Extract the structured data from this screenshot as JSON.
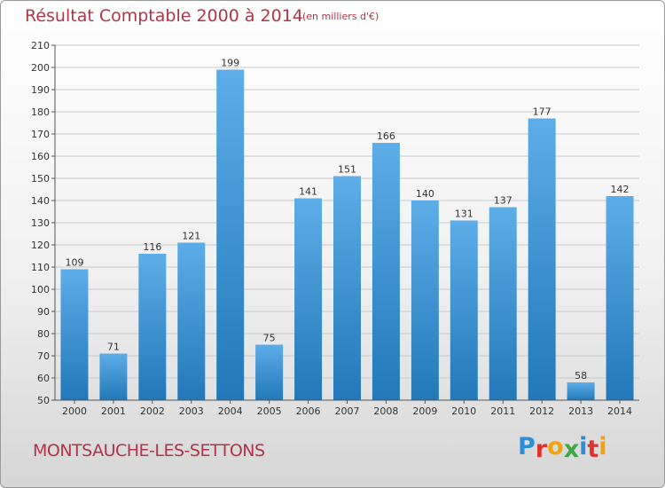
{
  "header": {
    "title": "Résultat Comptable 2000 à 2014",
    "subtitle": "(en milliers d'€)"
  },
  "footer": {
    "commune": "MONTSAUCHE-LES-SETTONS",
    "logo": {
      "text": "Proxiti",
      "letters": [
        {
          "ch": "P",
          "color": "#2a8fd6"
        },
        {
          "ch": "r",
          "color": "#e0312f"
        },
        {
          "ch": "o",
          "color": "#f2a20c"
        },
        {
          "ch": "x",
          "color": "#3aa845"
        },
        {
          "ch": "i",
          "color": "#2a8fd6"
        },
        {
          "ch": "t",
          "color": "#e0312f"
        },
        {
          "ch": "i",
          "color": "#f2a20c"
        }
      ]
    }
  },
  "colors": {
    "accent": "#b0344a",
    "bar_top": "#5dade8",
    "bar_bottom": "#2278b8",
    "grid": "#c8c8c8"
  },
  "chart_data": {
    "type": "bar",
    "title": "Résultat Comptable 2000 à 2014",
    "subtitle": "(en milliers d'€)",
    "xlabel": "",
    "ylabel": "",
    "categories": [
      "2000",
      "2001",
      "2002",
      "2003",
      "2004",
      "2005",
      "2006",
      "2007",
      "2008",
      "2009",
      "2010",
      "2011",
      "2012",
      "2013",
      "2014"
    ],
    "values": [
      109,
      71,
      116,
      121,
      199,
      75,
      141,
      151,
      166,
      140,
      131,
      137,
      177,
      58,
      142
    ],
    "ylim": [
      50,
      210
    ],
    "yticks": [
      50,
      60,
      70,
      80,
      90,
      100,
      110,
      120,
      130,
      140,
      150,
      160,
      170,
      180,
      190,
      200,
      210
    ],
    "grid": true,
    "legend": "none"
  }
}
